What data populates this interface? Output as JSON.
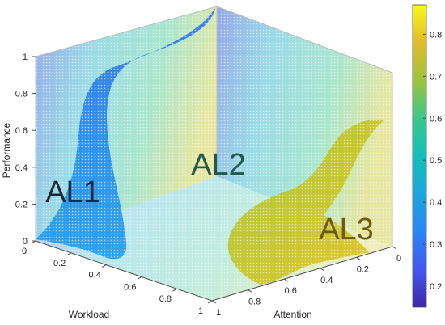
{
  "chart_data": {
    "type": "scatter",
    "dimensions": "3d",
    "axes": {
      "x": {
        "label": "Workload",
        "ticks": [
          "0",
          "0.2",
          "0.4",
          "0.6",
          "0.8",
          "1"
        ],
        "range": [
          0,
          1
        ]
      },
      "y": {
        "label": "Attention",
        "ticks": [
          "0",
          "0.2",
          "0.4",
          "0.6",
          "0.8",
          "1"
        ],
        "range": [
          0,
          1
        ]
      },
      "z": {
        "label": "Performance",
        "ticks": [
          "0",
          "0.2",
          "0.4",
          "0.6",
          "0.8",
          "1"
        ],
        "range": [
          0,
          1
        ]
      }
    },
    "regions": [
      {
        "label": "AL1",
        "color": "#1f8ff0",
        "label_color": "#1c2a3a"
      },
      {
        "label": "AL2",
        "color": "#2cc1a6",
        "label_color": "#1f5a4a"
      },
      {
        "label": "AL3",
        "color": "#c9c418",
        "label_color": "#6b5a12"
      }
    ],
    "colorbar": {
      "ticks": [
        "0.2",
        "0.3",
        "0.4",
        "0.5",
        "0.6",
        "0.7",
        "0.8"
      ],
      "range": [
        0.15,
        0.87
      ],
      "colormap": "parula"
    },
    "grid": true
  }
}
